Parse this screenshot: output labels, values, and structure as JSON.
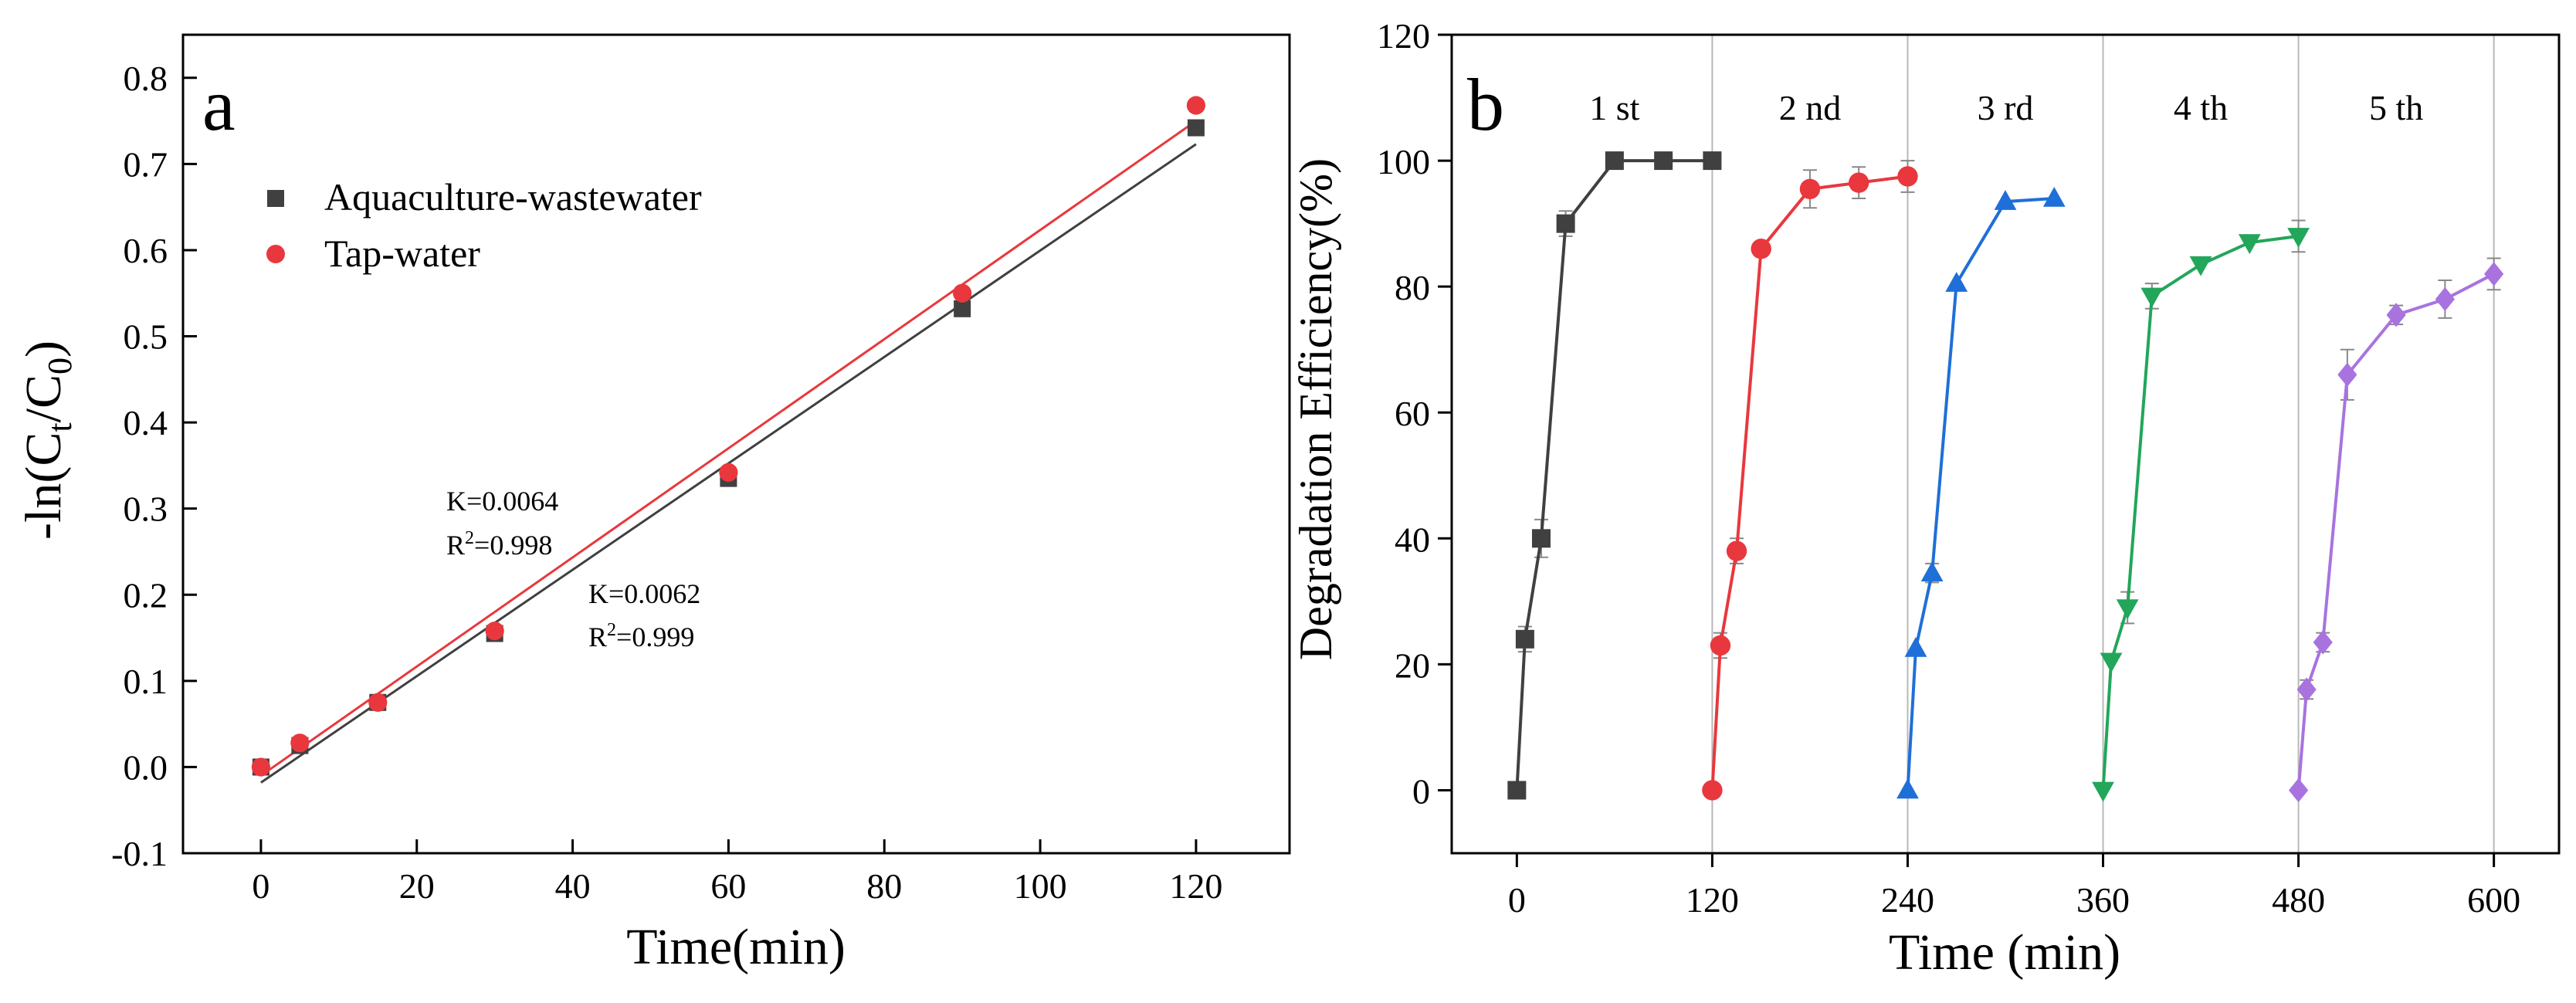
{
  "chart_data": [
    {
      "panel": "a",
      "type": "scatter",
      "xlabel": "Time(min)",
      "ylabel_parts": {
        "prefix": "-ln(C",
        "sub1": "t",
        "mid": "/C",
        "sub2": "0",
        "suffix": ")"
      },
      "xlim": [
        -10,
        132
      ],
      "ylim": [
        -0.1,
        0.85
      ],
      "xticks": [
        0,
        20,
        40,
        60,
        80,
        100,
        120
      ],
      "yticks": [
        -0.1,
        0.0,
        0.1,
        0.2,
        0.3,
        0.4,
        0.5,
        0.6,
        0.7,
        0.8
      ],
      "ytick_labels": [
        "-0.1",
        "0.0",
        "0.1",
        "0.2",
        "0.3",
        "0.4",
        "0.5",
        "0.6",
        "0.7",
        "0.8"
      ],
      "series": [
        {
          "name": "Aquaculture-wastewater",
          "marker": "square",
          "color": "#404040",
          "x": [
            0,
            5,
            15,
            30,
            60,
            90,
            120
          ],
          "y": [
            0.0,
            0.025,
            0.075,
            0.155,
            0.335,
            0.532,
            0.742
          ],
          "fit": {
            "x0": 0,
            "y0": -0.018,
            "x1": 120,
            "y1": 0.723
          }
        },
        {
          "name": "Tap-water",
          "marker": "circle",
          "color": "#e8383d",
          "x": [
            0,
            5,
            15,
            30,
            60,
            90,
            120
          ],
          "y": [
            0.0,
            0.028,
            0.075,
            0.158,
            0.342,
            0.55,
            0.768
          ],
          "fit": {
            "x0": 0,
            "y0": -0.01,
            "x1": 120,
            "y1": 0.75
          }
        }
      ],
      "annotations": [
        {
          "k": "K=0.0064",
          "r_prefix": "R",
          "r_sup": "2",
          "r_value": "=0.998"
        },
        {
          "k": "K=0.0062",
          "r_prefix": "R",
          "r_sup": "2",
          "r_value": "=0.999"
        }
      ]
    },
    {
      "panel": "b",
      "type": "line",
      "xlabel": "Time (min)",
      "ylabel": "Degradation Efficiency(%)",
      "xlim": [
        -40,
        640
      ],
      "ylim": [
        -10,
        120
      ],
      "xticks": [
        0,
        120,
        240,
        360,
        480,
        600
      ],
      "yticks": [
        0,
        20,
        40,
        60,
        80,
        100,
        120
      ],
      "cycle_dividers": [
        120,
        240,
        360,
        480,
        600
      ],
      "cycle_labels": [
        {
          "label": "1 st",
          "x": 60
        },
        {
          "label": "2 nd",
          "x": 180
        },
        {
          "label": "3 rd",
          "x": 300
        },
        {
          "label": "4 th",
          "x": 420
        },
        {
          "label": "5 th",
          "x": 540
        }
      ],
      "series": [
        {
          "name": "1 st",
          "marker": "square",
          "color": "#404040",
          "x": [
            0,
            5,
            15,
            30,
            60,
            90,
            120
          ],
          "y": [
            0,
            24,
            40,
            90,
            100,
            100,
            100
          ],
          "err": [
            0,
            2,
            3,
            2,
            0,
            0,
            0
          ]
        },
        {
          "name": "2 nd",
          "marker": "circle",
          "color": "#e8383d",
          "x": [
            120,
            125,
            135,
            150,
            180,
            210,
            240
          ],
          "y": [
            0,
            23,
            38,
            86,
            95.5,
            96.5,
            97.5
          ],
          "err": [
            0,
            2,
            2,
            0,
            3,
            2.5,
            2.5
          ]
        },
        {
          "name": "3 rd",
          "marker": "triangle-up",
          "color": "#1f6fd8",
          "x": [
            240,
            245,
            255,
            270,
            300,
            330
          ],
          "y": [
            0,
            22.5,
            34.5,
            80.5,
            93.5,
            94
          ],
          "err": [
            0,
            0,
            1.5,
            0,
            0,
            0
          ]
        },
        {
          "name": "4 th",
          "marker": "triangle-down",
          "color": "#22a65a",
          "x": [
            360,
            365,
            375,
            390,
            420,
            450,
            480
          ],
          "y": [
            0,
            20.5,
            29,
            78.5,
            83.5,
            87,
            88
          ],
          "err": [
            0,
            0,
            2.5,
            2,
            0,
            0,
            2.5
          ]
        },
        {
          "name": "5 th",
          "marker": "diamond",
          "color": "#a873df",
          "x": [
            480,
            485,
            495,
            510,
            540,
            570,
            600
          ],
          "y": [
            0,
            16,
            23.5,
            66,
            75.5,
            78,
            82
          ],
          "err": [
            0,
            1.5,
            1.5,
            4,
            1.5,
            3,
            2.5
          ]
        }
      ]
    }
  ],
  "labels": {
    "panel_a": "a",
    "panel_b": "b"
  }
}
